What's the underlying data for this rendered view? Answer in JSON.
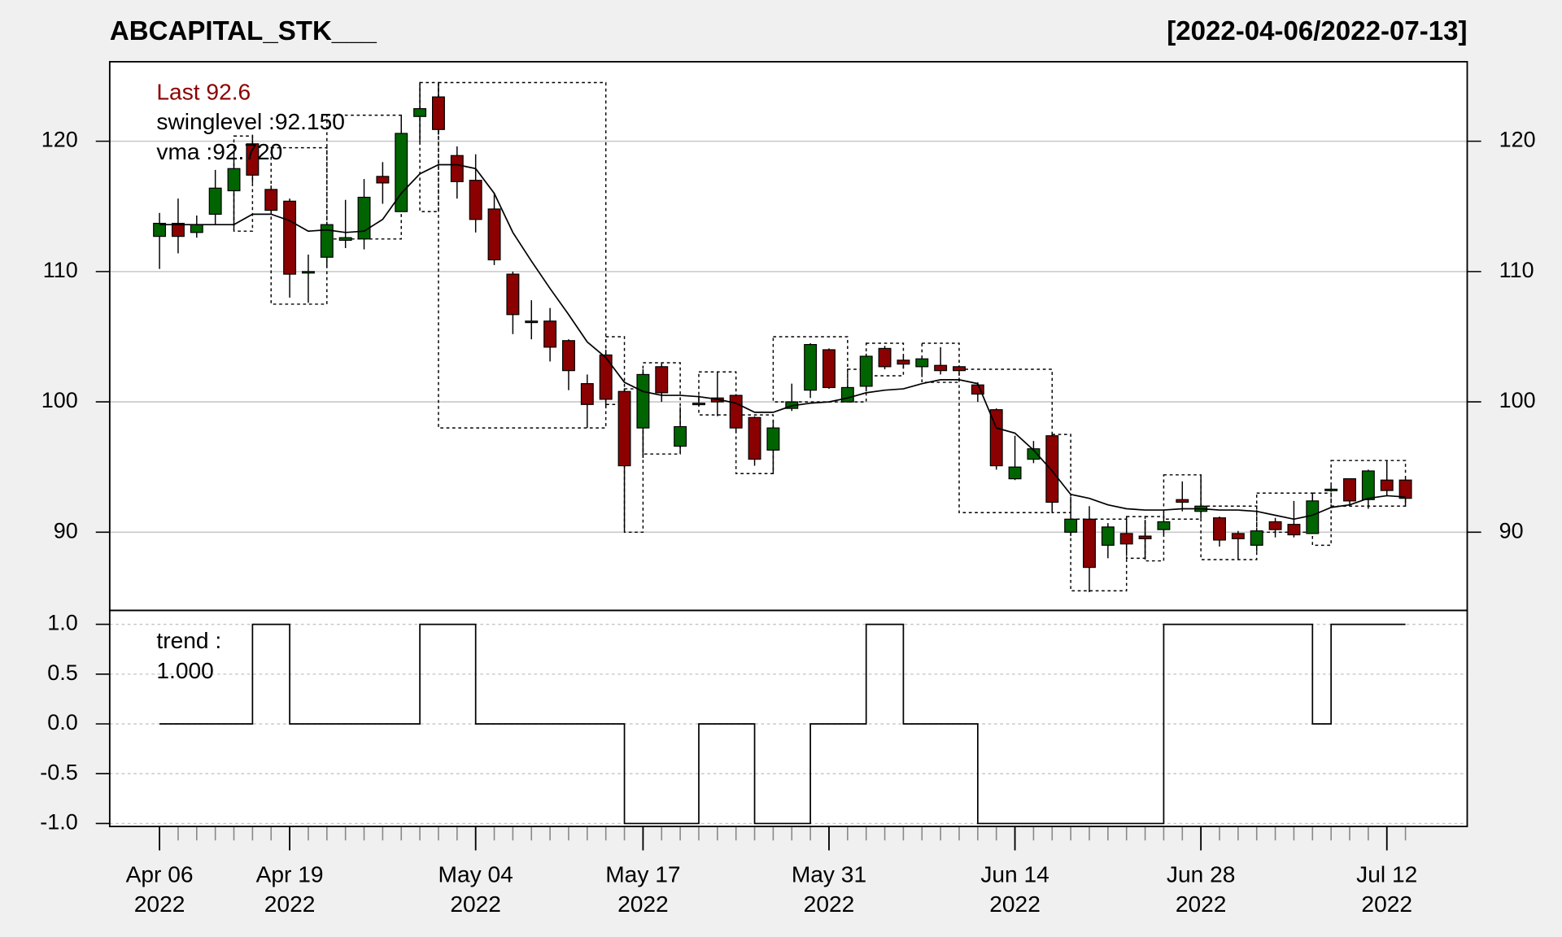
{
  "chart_data": {
    "type": "candlestick",
    "title": "ABCAPITAL_STK___",
    "subtitle": "[2022-04-06/2022-07-13]",
    "annotations": [
      "Last 92.6",
      "swinglevel :92.150",
      "vma :92.720"
    ],
    "up_color": "#006400",
    "down_color": "#8b0000",
    "grid": true,
    "x": [
      "2022-04-06",
      "2022-04-07",
      "2022-04-08",
      "2022-04-11",
      "2022-04-12",
      "2022-04-13",
      "2022-04-18",
      "2022-04-19",
      "2022-04-20",
      "2022-04-21",
      "2022-04-22",
      "2022-04-25",
      "2022-04-26",
      "2022-04-27",
      "2022-04-28",
      "2022-04-29",
      "2022-05-02",
      "2022-05-04",
      "2022-05-05",
      "2022-05-06",
      "2022-05-09",
      "2022-05-10",
      "2022-05-11",
      "2022-05-12",
      "2022-05-13",
      "2022-05-16",
      "2022-05-17",
      "2022-05-18",
      "2022-05-19",
      "2022-05-20",
      "2022-05-23",
      "2022-05-24",
      "2022-05-25",
      "2022-05-26",
      "2022-05-27",
      "2022-05-30",
      "2022-05-31",
      "2022-06-01",
      "2022-06-02",
      "2022-06-03",
      "2022-06-06",
      "2022-06-07",
      "2022-06-08",
      "2022-06-09",
      "2022-06-10",
      "2022-06-13",
      "2022-06-14",
      "2022-06-15",
      "2022-06-16",
      "2022-06-17",
      "2022-06-20",
      "2022-06-21",
      "2022-06-22",
      "2022-06-23",
      "2022-06-24",
      "2022-06-27",
      "2022-06-28",
      "2022-06-29",
      "2022-06-30",
      "2022-07-01",
      "2022-07-04",
      "2022-07-05",
      "2022-07-06",
      "2022-07-07",
      "2022-07-08",
      "2022-07-11",
      "2022-07-12",
      "2022-07-13"
    ],
    "open": [
      112.7,
      113.7,
      113.0,
      114.4,
      116.2,
      119.8,
      116.3,
      115.4,
      110.0,
      111.1,
      112.4,
      112.5,
      117.3,
      114.6,
      121.9,
      123.4,
      118.9,
      117.0,
      114.8,
      109.8,
      106.2,
      106.2,
      104.7,
      101.4,
      103.6,
      100.8,
      98.0,
      102.7,
      96.6,
      99.8,
      100.3,
      100.5,
      98.8,
      96.3,
      99.5,
      100.9,
      104.0,
      100.0,
      101.2,
      104.1,
      103.2,
      102.7,
      102.8,
      102.7,
      101.3,
      99.4,
      94.1,
      95.6,
      97.4,
      90.0,
      91.0,
      89.0,
      89.9,
      89.7,
      90.2,
      92.5,
      91.6,
      91.1,
      89.9,
      89.0,
      90.8,
      90.6,
      89.9,
      93.2,
      94.1,
      92.5,
      94.0,
      94.0
    ],
    "high": [
      114.5,
      115.6,
      114.3,
      117.8,
      119.2,
      120.5,
      116.6,
      115.6,
      111.3,
      113.8,
      115.5,
      117.1,
      118.4,
      122.0,
      124.4,
      124.4,
      119.6,
      119.0,
      116.0,
      110.0,
      107.8,
      107.2,
      104.8,
      102.1,
      104.0,
      101.0,
      102.5,
      103.0,
      99.6,
      100.5,
      102.3,
      100.6,
      98.9,
      98.6,
      101.4,
      104.5,
      104.1,
      101.3,
      103.7,
      104.3,
      103.5,
      103.5,
      104.2,
      102.8,
      101.5,
      99.5,
      97.4,
      97.0,
      97.6,
      92.7,
      92.0,
      90.7,
      91.2,
      90.9,
      91.6,
      93.9,
      94.4,
      91.2,
      90.1,
      90.3,
      91.1,
      92.4,
      93.0,
      93.6,
      94.1,
      94.8,
      95.5,
      94.1
    ],
    "low": [
      110.2,
      111.4,
      112.6,
      113.6,
      113.2,
      116.8,
      114.4,
      108.0,
      107.6,
      110.3,
      111.8,
      111.7,
      115.2,
      114.6,
      119.9,
      120.5,
      115.6,
      113.0,
      110.5,
      105.2,
      104.8,
      103.1,
      100.9,
      98.0,
      99.5,
      90.1,
      95.7,
      100.0,
      96.1,
      99.7,
      98.9,
      97.6,
      95.1,
      94.5,
      99.3,
      100.3,
      101.0,
      100.0,
      100.8,
      102.5,
      102.6,
      101.9,
      102.1,
      102.3,
      100.0,
      94.8,
      94.0,
      95.3,
      91.5,
      89.7,
      85.4,
      88.0,
      88.4,
      87.9,
      89.8,
      91.6,
      91.5,
      88.9,
      87.9,
      88.5,
      89.6,
      89.6,
      89.9,
      93.1,
      92.0,
      91.8,
      92.8,
      92.0
    ],
    "close": [
      113.7,
      112.7,
      113.6,
      116.4,
      117.9,
      117.4,
      114.7,
      109.8,
      110.0,
      113.6,
      112.6,
      115.7,
      116.8,
      120.6,
      122.5,
      120.9,
      116.9,
      114.0,
      110.9,
      106.7,
      106.1,
      104.2,
      102.4,
      99.8,
      100.2,
      95.1,
      102.1,
      100.7,
      98.1,
      99.9,
      100.0,
      98.0,
      95.6,
      98.0,
      100.0,
      104.4,
      101.1,
      101.1,
      103.5,
      102.7,
      102.9,
      103.3,
      102.4,
      102.4,
      100.6,
      95.1,
      95.0,
      96.4,
      92.3,
      91.0,
      87.3,
      90.4,
      89.1,
      89.5,
      90.8,
      92.3,
      92.0,
      89.4,
      89.5,
      90.1,
      90.2,
      89.8,
      92.4,
      93.3,
      92.4,
      94.7,
      93.2,
      92.6
    ],
    "vma": [
      113.6,
      113.6,
      113.6,
      113.6,
      113.6,
      114.4,
      114.4,
      113.9,
      113.1,
      113.2,
      113.0,
      113.1,
      114.0,
      116.0,
      117.5,
      118.2,
      118.2,
      117.9,
      116.0,
      113.0,
      110.8,
      108.7,
      106.7,
      104.6,
      103.4,
      101.5,
      100.8,
      100.5,
      100.5,
      100.4,
      100.2,
      99.9,
      99.2,
      99.2,
      99.7,
      99.9,
      100.0,
      100.3,
      100.7,
      100.9,
      101.0,
      101.4,
      101.7,
      101.7,
      101.4,
      98.0,
      97.6,
      96.3,
      94.7,
      92.9,
      92.6,
      92.1,
      91.8,
      91.7,
      91.7,
      91.8,
      91.8,
      91.7,
      91.7,
      91.6,
      91.3,
      91.0,
      91.3,
      91.9,
      92.1,
      92.6,
      92.8,
      92.7
    ],
    "swing_boxes": [
      [
        "2022-04-12",
        "2022-04-13",
        113.1,
        120.4
      ],
      [
        "2022-04-18",
        "2022-04-21",
        107.5,
        119.5
      ],
      [
        "2022-04-21",
        "2022-04-27",
        112.5,
        122.0
      ],
      [
        "2022-04-28",
        "2022-04-29",
        114.6,
        124.5
      ],
      [
        "2022-04-29",
        "2022-05-13",
        98.0,
        124.5
      ],
      [
        "2022-05-13",
        "2022-05-16",
        99.8,
        105.0
      ],
      [
        "2022-05-16",
        "2022-05-17",
        90.0,
        101.0
      ],
      [
        "2022-05-17",
        "2022-05-19",
        96.0,
        103.0
      ],
      [
        "2022-05-20",
        "2022-05-24",
        99.0,
        102.3
      ],
      [
        "2022-05-24",
        "2022-05-26",
        94.5,
        99.0
      ],
      [
        "2022-05-26",
        "2022-06-01",
        100.0,
        105.0
      ],
      [
        "2022-06-01",
        "2022-06-02",
        100.0,
        102.5
      ],
      [
        "2022-06-02",
        "2022-06-06",
        102.0,
        104.5
      ],
      [
        "2022-06-07",
        "2022-06-09",
        101.5,
        104.5
      ],
      [
        "2022-06-09",
        "2022-06-16",
        91.5,
        102.5
      ],
      [
        "2022-06-16",
        "2022-06-17",
        91.5,
        97.5
      ],
      [
        "2022-06-17",
        "2022-06-22",
        85.5,
        91.0
      ],
      [
        "2022-06-22",
        "2022-06-23",
        88.0,
        91.2
      ],
      [
        "2022-06-23",
        "2022-06-24",
        87.8,
        91.2
      ],
      [
        "2022-06-24",
        "2022-06-28",
        91.0,
        94.4
      ],
      [
        "2022-06-28",
        "2022-07-01",
        87.9,
        92.0
      ],
      [
        "2022-07-01",
        "2022-07-06",
        90.0,
        93.0
      ],
      [
        "2022-07-06",
        "2022-07-07",
        89.0,
        93.0
      ],
      [
        "2022-07-07",
        "2022-07-13",
        92.0,
        95.5
      ]
    ],
    "ylim": [
      84.0,
      126.1
    ],
    "yticks": [
      90,
      100,
      110,
      120
    ],
    "xticks": [
      {
        "value": "2022-04-06",
        "label": "Apr 06\n2022"
      },
      {
        "value": "2022-04-19",
        "label": "Apr 19\n2022"
      },
      {
        "value": "2022-05-04",
        "label": "May 04\n2022"
      },
      {
        "value": "2022-05-17",
        "label": "May 17\n2022"
      },
      {
        "value": "2022-05-31",
        "label": "May 31\n2022"
      },
      {
        "value": "2022-06-14",
        "label": "Jun 14\n2022"
      },
      {
        "value": "2022-06-28",
        "label": "Jun 28\n2022"
      },
      {
        "value": "2022-07-12",
        "label": "Jul 12\n2022"
      }
    ],
    "trend": {
      "type": "step",
      "annotations": [
        "trend :",
        "1.000"
      ],
      "values": [
        0,
        0,
        0,
        0,
        0,
        1,
        1,
        0,
        0,
        0,
        0,
        0,
        0,
        0,
        1,
        1,
        1,
        0,
        0,
        0,
        0,
        0,
        0,
        0,
        0,
        -1,
        -1,
        -1,
        -1,
        0,
        0,
        0,
        -1,
        -1,
        -1,
        0,
        0,
        0,
        1,
        1,
        0,
        0,
        0,
        0,
        -1,
        -1,
        -1,
        -1,
        -1,
        -1,
        -1,
        -1,
        -1,
        -1,
        1,
        1,
        1,
        1,
        1,
        1,
        1,
        1,
        0,
        1,
        1,
        1,
        1,
        1
      ],
      "ylim": [
        -1.03,
        1.14
      ],
      "yticks": [
        {
          "value": -1,
          "label": "-1.0"
        },
        {
          "value": -0.5,
          "label": "-0.5"
        },
        {
          "value": 0,
          "label": "0.0"
        },
        {
          "value": 0.5,
          "label": "0.5"
        },
        {
          "value": 1,
          "label": "1.0"
        }
      ]
    }
  }
}
